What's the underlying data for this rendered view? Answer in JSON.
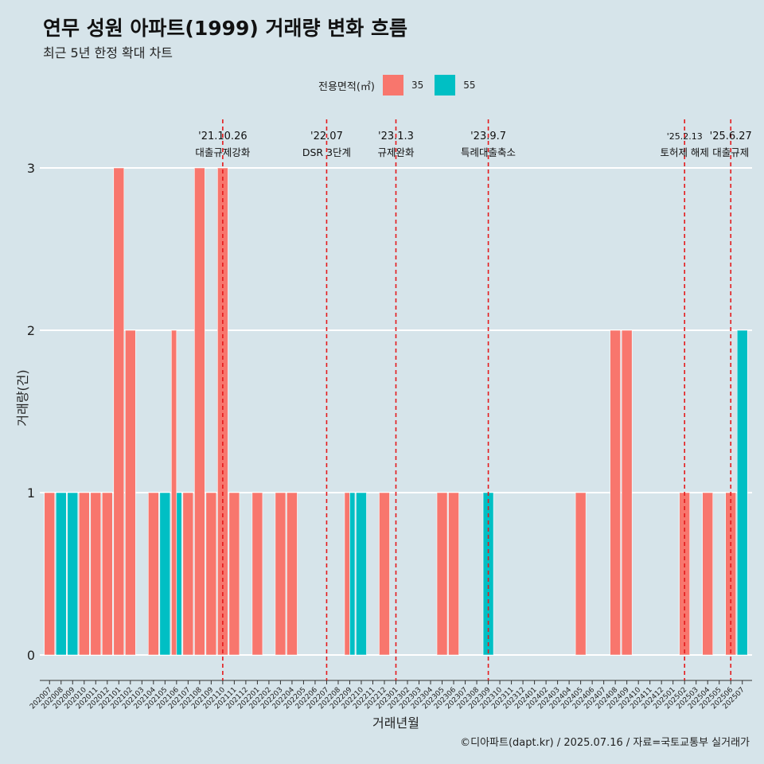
{
  "title": "연무 성원 아파트(1999) 거래량 변화 흐름",
  "subtitle": "최근 5년 한정 확대 차트",
  "legend": {
    "title": "전용면적(㎡)",
    "items": [
      "35",
      "55"
    ]
  },
  "caption": "©디아파트(dapt.kr) / 2025.07.16 / 자료=국토교통부 실거래가",
  "colors": {
    "s35": "#f8766d",
    "s55": "#00bfc4",
    "background": "#d6e4ea",
    "grid": "#ffffff",
    "eventLine": "#e41a1c"
  },
  "chart_data": {
    "type": "bar",
    "stacking": "dodge",
    "xlabel": "거래년월",
    "ylabel": "거래량(건)",
    "ylim": [
      0,
      3
    ],
    "yticks": [
      0,
      1,
      2,
      3
    ],
    "grid": true,
    "legend_position": "top",
    "categories": [
      "202007",
      "202008",
      "202009",
      "202010",
      "202011",
      "202012",
      "202101",
      "202102",
      "202103",
      "202104",
      "202105",
      "202106",
      "202107",
      "202108",
      "202109",
      "202110",
      "202111",
      "202112",
      "202201",
      "202202",
      "202203",
      "202204",
      "202205",
      "202206",
      "202207",
      "202208",
      "202209",
      "202210",
      "202211",
      "202212",
      "202301",
      "202302",
      "202303",
      "202304",
      "202305",
      "202306",
      "202307",
      "202308",
      "202309",
      "202310",
      "202311",
      "202312",
      "202401",
      "202402",
      "202403",
      "202404",
      "202405",
      "202406",
      "202407",
      "202408",
      "202409",
      "202410",
      "202411",
      "202412",
      "202501",
      "202502",
      "202503",
      "202504",
      "202505",
      "202506",
      "202507"
    ],
    "series": [
      {
        "name": "35",
        "values": [
          1,
          0,
          0,
          1,
          1,
          1,
          3,
          2,
          0,
          1,
          0,
          2,
          1,
          3,
          1,
          3,
          1,
          0,
          1,
          0,
          1,
          1,
          0,
          0,
          0,
          0,
          1,
          0,
          0,
          1,
          0,
          0,
          0,
          0,
          1,
          1,
          0,
          0,
          0,
          0,
          0,
          0,
          0,
          0,
          0,
          0,
          1,
          0,
          0,
          2,
          2,
          0,
          0,
          0,
          0,
          1,
          0,
          1,
          0,
          1,
          0
        ]
      },
      {
        "name": "55",
        "values": [
          0,
          1,
          1,
          0,
          0,
          0,
          0,
          0,
          0,
          0,
          1,
          1,
          0,
          0,
          0,
          0,
          0,
          0,
          0,
          0,
          0,
          0,
          0,
          0,
          0,
          0,
          1,
          1,
          0,
          0,
          0,
          0,
          0,
          0,
          0,
          0,
          0,
          0,
          1,
          0,
          0,
          0,
          0,
          0,
          0,
          0,
          0,
          0,
          0,
          0,
          0,
          0,
          0,
          0,
          0,
          0,
          0,
          0,
          0,
          0,
          2
        ]
      }
    ],
    "events": [
      {
        "x": "202110",
        "date": "'21.10.26",
        "label": "대출규제강화"
      },
      {
        "x": "202207",
        "date": "'22.07",
        "label": "DSR 3단계"
      },
      {
        "x": "202301",
        "date": "'23.1.3",
        "label": "규제완화"
      },
      {
        "x": "202309",
        "date": "'23.9.7",
        "label": "특례대출축소"
      },
      {
        "x": "202502",
        "date": "'25.2.13",
        "label": "토허제 해제"
      },
      {
        "x": "202506",
        "date": "'25.6.27",
        "label": "대출규제"
      }
    ]
  }
}
